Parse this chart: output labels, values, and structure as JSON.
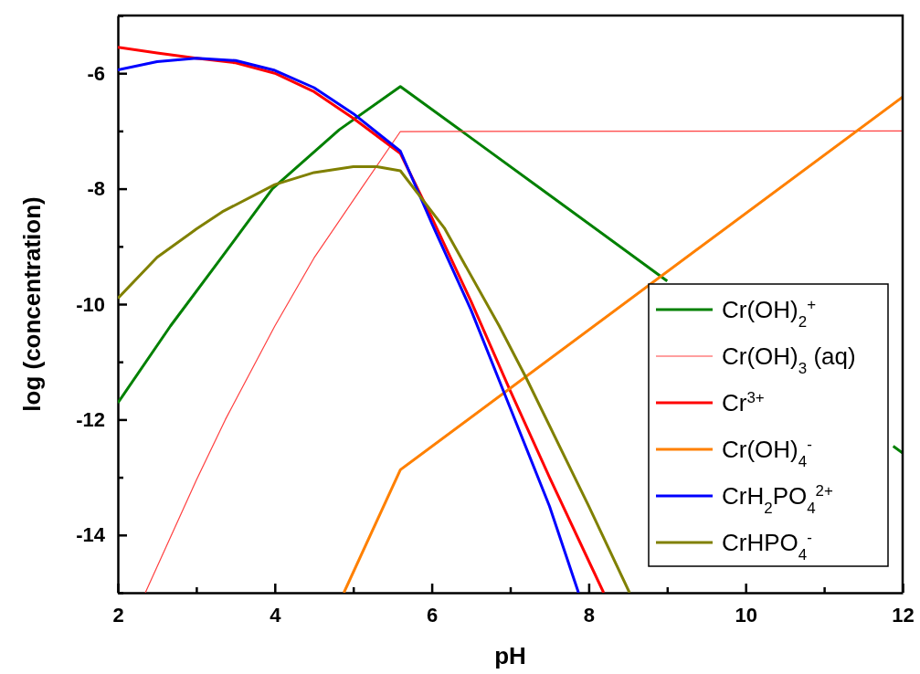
{
  "chart_data": {
    "type": "line",
    "xlabel": "pH",
    "ylabel": "log (concentration)",
    "xlim": [
      2,
      12
    ],
    "xticks": [
      2,
      {
        "value": 3,
        "label": null
      },
      4,
      {
        "value": 5,
        "label": null
      },
      6,
      {
        "value": 7,
        "label": null
      },
      8,
      {
        "value": 9,
        "label": null
      },
      10,
      {
        "value": 11,
        "label": null
      },
      12
    ],
    "ylim": [
      -15,
      -5
    ],
    "yticks": [
      {
        "value": -15,
        "label": null
      },
      -14,
      {
        "value": -13,
        "label": null
      },
      -12,
      {
        "value": -11,
        "label": null
      },
      -10,
      {
        "value": -9,
        "label": null
      },
      -8,
      {
        "value": -7,
        "label": null
      },
      -6,
      {
        "value": -5,
        "label": null
      }
    ],
    "grid": false,
    "legend": "bottom right",
    "marker": "none",
    "line_style": "solid",
    "series": [
      {
        "name": "Cr(OH)$_{2}$$^{+}$",
        "color": "#008000",
        "x": [
          2,
          2.67,
          3.29,
          3.97,
          4.82,
          5.6,
          7.49,
          9.0,
          10,
          11.88,
          12
        ],
        "values": [
          -11.71,
          -10.38,
          -9.25,
          -8.0,
          -6.98,
          -6.23,
          -8.1,
          -9.6,
          null,
          -12.46,
          -12.58
        ]
      },
      {
        "name": "Cr(OH)$_{3}$ (aq)",
        "color": "#ff4040",
        "x": [
          2.35,
          3,
          3.37,
          4,
          4.5,
          5.1,
          5.6,
          12
        ],
        "values": [
          -15,
          -13.05,
          -12,
          -10.38,
          -9.2,
          -8,
          -7.01,
          -7.0
        ]
      },
      {
        "name": "Cr$^{3+}$",
        "color": "#ff0000",
        "x": [
          2,
          2.5,
          3,
          3.5,
          4,
          4.5,
          5,
          5.6,
          6,
          6.5,
          7,
          7.5,
          8,
          8.19
        ],
        "values": [
          -5.55,
          -5.65,
          -5.74,
          -5.82,
          -6.0,
          -6.32,
          -6.78,
          -7.39,
          -8.5,
          -9.95,
          -11.5,
          -13.0,
          -14.45,
          -15
        ]
      },
      {
        "name": "Cr(OH)$_{4}$$^{-}$",
        "color": "#ff8000",
        "x": [
          4.88,
          5.6,
          12
        ],
        "values": [
          -15,
          -12.87,
          -6.41
        ]
      },
      {
        "name": "CrH$_{2}$PO$_{4}$$^{2+}$",
        "color": "#0000ff",
        "x": [
          2,
          2.5,
          3,
          3.5,
          4,
          4.5,
          5,
          5.6,
          6,
          6.5,
          7,
          7.5,
          7.87
        ],
        "values": [
          -5.94,
          -5.8,
          -5.74,
          -5.78,
          -5.95,
          -6.25,
          -6.7,
          -7.35,
          -8.6,
          -10.1,
          -11.8,
          -13.5,
          -15
        ]
      },
      {
        "name": "CrHPO$_{4}$$^{-}$",
        "color": "#808000",
        "x": [
          2,
          2.5,
          3,
          3.33,
          4,
          4.5,
          5,
          5.3,
          5.6,
          6.16,
          6.86,
          7.2,
          8,
          8.52
        ],
        "values": [
          -9.9,
          -9.19,
          -8.7,
          -8.4,
          -7.93,
          -7.72,
          -7.62,
          -7.62,
          -7.69,
          -8.68,
          -10.38,
          -11.27,
          -13.5,
          -15
        ]
      }
    ]
  }
}
